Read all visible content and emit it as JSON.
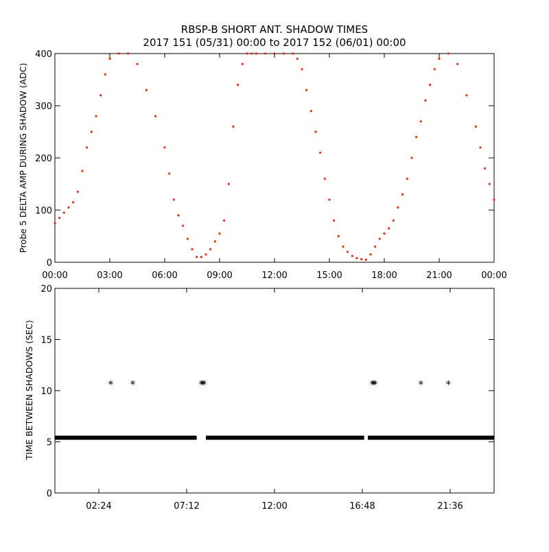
{
  "title_line1": "RBSP-B SHORT ANT. SHADOW TIMES",
  "title_line2": "2017 151 (05/31) 00:00 to 2017 152 (06/01) 00:00",
  "chart_data": [
    {
      "type": "scatter",
      "ylabel": "Probe 5 DELTA AMP DURING SHADOW (ADC)",
      "xlim": [
        0,
        24
      ],
      "ylim": [
        0,
        400
      ],
      "x_tick_labels": [
        "00:00",
        "03:00",
        "06:00",
        "09:00",
        "12:00",
        "15:00",
        "18:00",
        "21:00",
        "00:00"
      ],
      "x_tick_values": [
        0,
        3,
        6,
        9,
        12,
        15,
        18,
        21,
        24
      ],
      "y_tick_labels": [
        "0",
        "100",
        "200",
        "300",
        "400"
      ],
      "y_tick_values": [
        0,
        100,
        200,
        300,
        400
      ],
      "marker_color": "#ff2200",
      "series": [
        {
          "x": [
            0.0,
            0.25,
            0.5,
            0.75,
            1.0,
            1.25,
            1.5,
            1.75,
            2.0,
            2.25,
            2.5,
            2.75,
            3.0,
            3.5,
            4.0,
            4.5,
            5.0,
            5.5,
            6.0,
            6.25,
            6.5,
            6.75,
            7.0,
            7.25,
            7.5,
            7.75,
            8.0,
            8.25,
            8.5,
            8.75,
            9.0,
            9.25,
            9.5,
            9.75,
            10.0,
            10.25,
            10.5,
            10.75,
            11.0,
            11.5,
            12.0,
            12.5,
            13.0,
            13.25,
            13.5,
            13.75,
            14.0,
            14.25,
            14.5,
            14.75,
            15.0,
            15.25,
            15.5,
            15.75,
            16.0,
            16.25,
            16.5,
            16.75,
            17.0,
            17.25,
            17.5,
            17.75,
            18.0,
            18.25,
            18.5,
            18.75,
            19.0,
            19.25,
            19.5,
            19.75,
            20.0,
            20.25,
            20.5,
            20.75,
            21.0,
            21.5,
            22.0,
            22.5,
            23.0,
            23.25,
            23.5,
            23.75,
            24.0
          ],
          "y": [
            75,
            85,
            95,
            105,
            115,
            135,
            175,
            220,
            250,
            280,
            320,
            360,
            390,
            400,
            400,
            380,
            330,
            280,
            220,
            170,
            120,
            90,
            70,
            45,
            25,
            10,
            10,
            15,
            25,
            40,
            55,
            80,
            150,
            260,
            340,
            380,
            400,
            400,
            400,
            400,
            400,
            400,
            400,
            390,
            370,
            330,
            290,
            250,
            210,
            160,
            120,
            80,
            50,
            30,
            20,
            12,
            8,
            6,
            5,
            15,
            30,
            45,
            55,
            65,
            80,
            105,
            130,
            160,
            200,
            240,
            270,
            310,
            340,
            370,
            390,
            400,
            380,
            320,
            260,
            220,
            180,
            150,
            120
          ]
        }
      ]
    },
    {
      "type": "scatter",
      "ylabel": "TIME BETWEEN SHADOWS (SEC)",
      "xlim": [
        0,
        24
      ],
      "ylim": [
        0,
        20
      ],
      "x_tick_labels": [
        "02:24",
        "07:12",
        "12:00",
        "16:48",
        "21:36"
      ],
      "x_tick_values": [
        2.4,
        7.2,
        12.0,
        16.8,
        21.6
      ],
      "y_tick_labels": [
        "0",
        "5",
        "10",
        "15",
        "20"
      ],
      "y_tick_values": [
        0,
        5,
        10,
        15,
        20
      ],
      "marker": "*",
      "marker_color": "#000000",
      "series": [
        {
          "baseline_y": 5.4,
          "baseline_segments": [
            [
              0.0,
              7.75
            ],
            [
              8.25,
              16.9
            ],
            [
              17.1,
              24.0
            ]
          ],
          "x": [
            3.05,
            4.25,
            8.0,
            8.08,
            8.15,
            17.35,
            17.42,
            17.5,
            20.0,
            21.5
          ],
          "y": [
            10.8,
            10.8,
            10.8,
            10.8,
            10.8,
            10.8,
            10.8,
            10.8,
            10.8,
            10.8
          ]
        }
      ]
    }
  ]
}
